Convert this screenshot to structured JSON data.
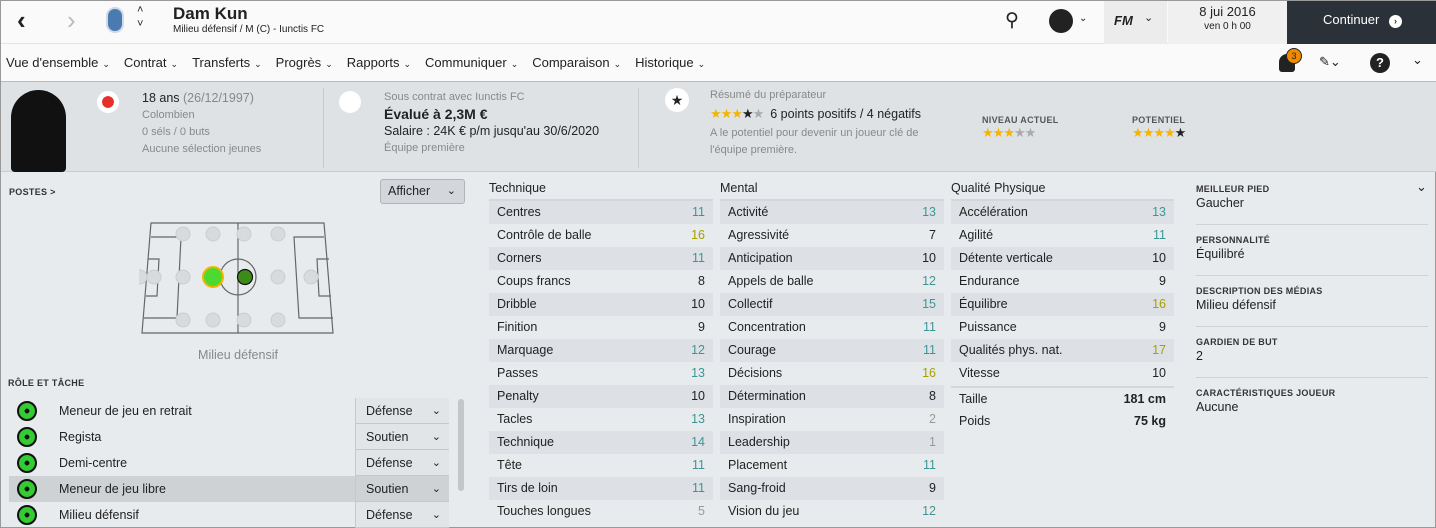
{
  "header": {
    "player_name": "Dam Kun",
    "subtitle": "Milieu défensif / M (C) - Iunctis FC",
    "date": "8 jui 2016",
    "time": "ven 0 h 00",
    "continue_label": "Continuer",
    "fm_label": "FM",
    "notification_count": "3"
  },
  "nav": {
    "tabs": [
      "Vue d'ensemble",
      "Contrat",
      "Transferts",
      "Progrès",
      "Rapports",
      "Communiquer",
      "Comparaison",
      "Historique"
    ],
    "active": 0
  },
  "info": {
    "age": "18 ans",
    "birthdate": "(26/12/1997)",
    "nationality": "Colombien",
    "caps": "0 séls / 0 buts",
    "youth": "Aucune sélection jeunes",
    "contract_label": "Sous contrat avec Iunctis FC",
    "value": "Évalué à 2,3M €",
    "salary": "Salaire : 24K € p/m jusqu'au 30/6/2020",
    "squad": "Équipe première",
    "coach_title": "Résumé du préparateur",
    "coach_stars": 3.5,
    "coach_summary": "6 points positifs / 4 négatifs",
    "coach_text": "A le potentiel pour devenir un joueur clé de l'équipe première.",
    "current_label": "NIVEAU ACTUEL",
    "current_stars": 3,
    "potential_label": "POTENTIEL",
    "potential_stars": 4.5
  },
  "positions": {
    "title": "POSTES >",
    "show_button": "Afficher",
    "position_name": "Milieu défensif"
  },
  "roles": {
    "title": "RÔLE ET TÂCHE",
    "items": [
      {
        "name": "Meneur de jeu en retrait",
        "duty": "Défense"
      },
      {
        "name": "Regista",
        "duty": "Soutien"
      },
      {
        "name": "Demi-centre",
        "duty": "Défense"
      },
      {
        "name": "Meneur de jeu libre",
        "duty": "Soutien",
        "selected": true
      },
      {
        "name": "Milieu défensif",
        "duty": "Défense"
      }
    ]
  },
  "attributes": {
    "technical": {
      "title": "Technique",
      "items": [
        [
          "Centres",
          11
        ],
        [
          "Contrôle de balle",
          16
        ],
        [
          "Corners",
          11
        ],
        [
          "Coups francs",
          8
        ],
        [
          "Dribble",
          10
        ],
        [
          "Finition",
          9
        ],
        [
          "Marquage",
          12
        ],
        [
          "Passes",
          13
        ],
        [
          "Penalty",
          10
        ],
        [
          "Tacles",
          13
        ],
        [
          "Technique",
          14
        ],
        [
          "Tête",
          11
        ],
        [
          "Tirs de loin",
          11
        ],
        [
          "Touches longues",
          5
        ]
      ]
    },
    "mental": {
      "title": "Mental",
      "items": [
        [
          "Activité",
          13
        ],
        [
          "Agressivité",
          7
        ],
        [
          "Anticipation",
          10
        ],
        [
          "Appels de balle",
          12
        ],
        [
          "Collectif",
          15
        ],
        [
          "Concentration",
          11
        ],
        [
          "Courage",
          11
        ],
        [
          "Décisions",
          16
        ],
        [
          "Détermination",
          8
        ],
        [
          "Inspiration",
          2
        ],
        [
          "Leadership",
          1
        ],
        [
          "Placement",
          11
        ],
        [
          "Sang-froid",
          9
        ],
        [
          "Vision du jeu",
          12
        ]
      ]
    },
    "physical": {
      "title": "Qualité Physique",
      "items": [
        [
          "Accélération",
          13
        ],
        [
          "Agilité",
          11
        ],
        [
          "Détente verticale",
          10
        ],
        [
          "Endurance",
          9
        ],
        [
          "Équilibre",
          16
        ],
        [
          "Puissance",
          9
        ],
        [
          "Qualités phys. nat.",
          17
        ],
        [
          "Vitesse",
          10
        ]
      ]
    },
    "height_label": "Taille",
    "height": "181 cm",
    "weight_label": "Poids",
    "weight": "75 kg"
  },
  "details": [
    {
      "label": "MEILLEUR PIED",
      "value": "Gaucher"
    },
    {
      "label": "PERSONNALITÉ",
      "value": "Équilibré"
    },
    {
      "label": "DESCRIPTION DES MÉDIAS",
      "value": "Milieu défensif"
    },
    {
      "label": "GARDIEN DE BUT",
      "value": "2"
    },
    {
      "label": "CARACTÉRISTIQUES JOUEUR",
      "value": "Aucune"
    }
  ],
  "colors": {
    "high": "#a6a000",
    "good": "#3d9696",
    "low": "#999999",
    "continue_bg": "#2b3138"
  }
}
